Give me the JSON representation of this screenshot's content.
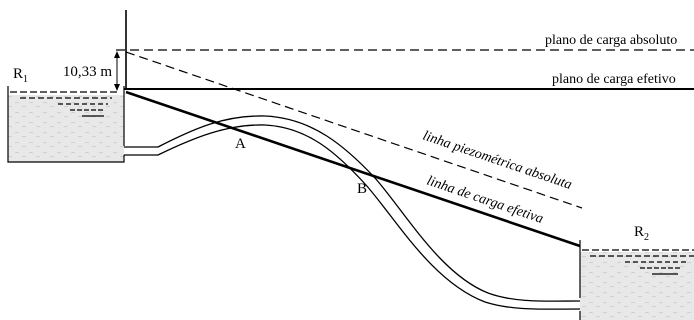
{
  "labels": {
    "plano_absoluto": "plano de carga absoluto",
    "plano_efetivo": "plano de carga efetivo",
    "linha_piezometrica": "linha piezométrica absoluta",
    "linha_carga": "linha de carga efetiva",
    "dimensao": "10,33 m",
    "reservatorio_1": "R",
    "reservatorio_1_sub": "1",
    "reservatorio_2": "R",
    "reservatorio_2_sub": "2",
    "ponto_a": "A",
    "ponto_b": "B"
  },
  "colors": {
    "stroke": "#000000",
    "water_fill": "#e6e6e6"
  }
}
